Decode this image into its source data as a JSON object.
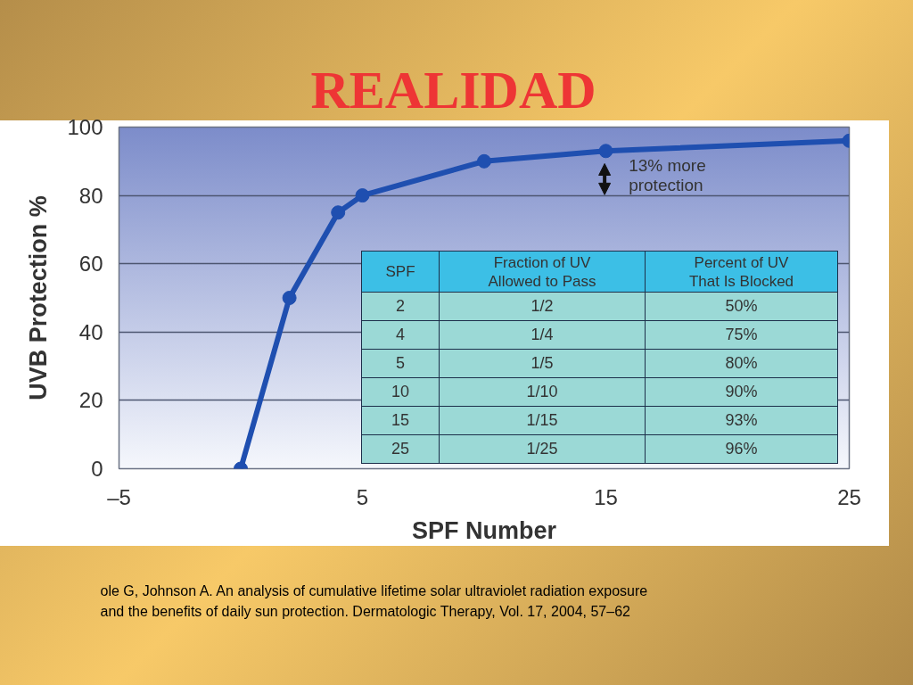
{
  "chart_data": [
    {
      "type": "line",
      "title": "REALIDAD",
      "xlabel": "SPF Number",
      "ylabel": "UVB Protection %",
      "x": [
        0,
        2,
        4,
        5,
        10,
        15,
        25
      ],
      "series": [
        {
          "color": "#1f4fb0",
          "values": [
            0,
            50,
            75,
            80,
            90,
            93,
            96
          ]
        }
      ],
      "xlim": [
        -5,
        25
      ],
      "xticks": [
        {
          "value": -5,
          "label": "–5"
        },
        5,
        15,
        25
      ],
      "ylim": [
        0,
        100
      ],
      "yticks": [
        0,
        20,
        40,
        60,
        80,
        100
      ],
      "grid": "y",
      "marker": "circle",
      "line_style": "solid",
      "annotations": [
        "13% more\nprotection",
        "ole G, Johnson A. An analysis of cumulative lifetime solar ultraviolet radiation exposure and the benefits of daily sun protection. Dermatologic Therapy, Vol. 17, 2004, 57–62"
      ]
    },
    {
      "type": "other",
      "categories": [
        "SPF",
        "Fraction of UV\nAllowed to Pass",
        "Percent of UV\nThat Is Blocked"
      ],
      "cell_labels": [
        [
          "2",
          "1/2",
          "50%"
        ],
        [
          "4",
          "1/4",
          "75%"
        ],
        [
          "5",
          "1/5",
          "80%"
        ],
        [
          "10",
          "1/10",
          "90%"
        ],
        [
          "15",
          "1/15",
          "93%"
        ],
        [
          "25",
          "1/25",
          "96%"
        ]
      ]
    }
  ]
}
